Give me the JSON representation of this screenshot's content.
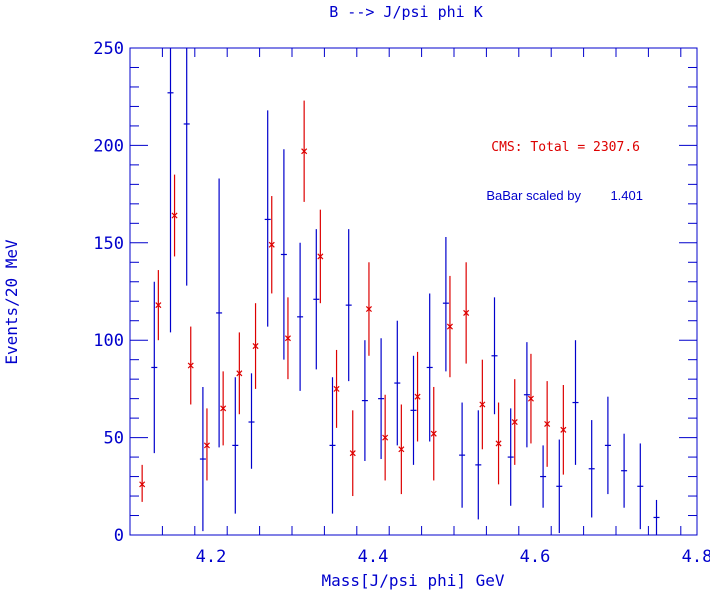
{
  "chart_data": {
    "type": "scatter",
    "title": "B --> J/psi phi K",
    "xlabel": "Mass[J/psi phi] GeV",
    "ylabel": "Events/20 MeV",
    "xlim": [
      4.1,
      4.8
    ],
    "ylim": [
      0,
      250
    ],
    "x_ticks": [
      4.2,
      4.4,
      4.6,
      4.8
    ],
    "x_tick_labels": [
      "4.2",
      "4.4",
      "4.6",
      "4.8"
    ],
    "y_ticks": [
      0,
      50,
      100,
      150,
      200,
      250
    ],
    "y_tick_labels": [
      "0",
      "50",
      "100",
      "150",
      "200",
      "250"
    ],
    "annotations": {
      "cms_label": "CMS:  Total = 2307.6",
      "babar_label": "BaBar scaled by",
      "babar_factor": "1.401"
    },
    "colors": {
      "axis": "#0000cc",
      "cms": "#dd0000",
      "babar": "#0000cc"
    },
    "series": [
      {
        "name": "CMS",
        "marker": "x",
        "points": [
          {
            "x": 4.115,
            "y": 26,
            "lo": 17,
            "hi": 36
          },
          {
            "x": 4.135,
            "y": 118,
            "lo": 100,
            "hi": 136
          },
          {
            "x": 4.155,
            "y": 164,
            "lo": 143,
            "hi": 185
          },
          {
            "x": 4.175,
            "y": 87,
            "lo": 67,
            "hi": 107
          },
          {
            "x": 4.195,
            "y": 46,
            "lo": 28,
            "hi": 65
          },
          {
            "x": 4.215,
            "y": 65,
            "lo": 46,
            "hi": 84
          },
          {
            "x": 4.235,
            "y": 83,
            "lo": 62,
            "hi": 104
          },
          {
            "x": 4.255,
            "y": 97,
            "lo": 75,
            "hi": 119
          },
          {
            "x": 4.275,
            "y": 149,
            "lo": 124,
            "hi": 174
          },
          {
            "x": 4.295,
            "y": 101,
            "lo": 80,
            "hi": 122
          },
          {
            "x": 4.315,
            "y": 197,
            "lo": 171,
            "hi": 223
          },
          {
            "x": 4.335,
            "y": 143,
            "lo": 119,
            "hi": 167
          },
          {
            "x": 4.355,
            "y": 75,
            "lo": 55,
            "hi": 95
          },
          {
            "x": 4.375,
            "y": 42,
            "lo": 20,
            "hi": 64
          },
          {
            "x": 4.395,
            "y": 116,
            "lo": 92,
            "hi": 140
          },
          {
            "x": 4.415,
            "y": 50,
            "lo": 28,
            "hi": 72
          },
          {
            "x": 4.435,
            "y": 44,
            "lo": 21,
            "hi": 67
          },
          {
            "x": 4.455,
            "y": 71,
            "lo": 48,
            "hi": 94
          },
          {
            "x": 4.475,
            "y": 52,
            "lo": 28,
            "hi": 76
          },
          {
            "x": 4.495,
            "y": 107,
            "lo": 81,
            "hi": 133
          },
          {
            "x": 4.515,
            "y": 114,
            "lo": 88,
            "hi": 140
          },
          {
            "x": 4.535,
            "y": 67,
            "lo": 44,
            "hi": 90
          },
          {
            "x": 4.555,
            "y": 47,
            "lo": 26,
            "hi": 68
          },
          {
            "x": 4.575,
            "y": 58,
            "lo": 36,
            "hi": 80
          },
          {
            "x": 4.595,
            "y": 70,
            "lo": 47,
            "hi": 93
          },
          {
            "x": 4.615,
            "y": 57,
            "lo": 35,
            "hi": 79
          },
          {
            "x": 4.635,
            "y": 54,
            "lo": 31,
            "hi": 77
          }
        ]
      },
      {
        "name": "BaBar",
        "marker": "tick",
        "points": [
          {
            "x": 4.13,
            "y": 86,
            "lo": 42,
            "hi": 130
          },
          {
            "x": 4.15,
            "y": 227,
            "lo": 104,
            "hi": 250
          },
          {
            "x": 4.17,
            "y": 211,
            "lo": 128,
            "hi": 250
          },
          {
            "x": 4.19,
            "y": 39,
            "lo": 2,
            "hi": 76
          },
          {
            "x": 4.21,
            "y": 114,
            "lo": 45,
            "hi": 183
          },
          {
            "x": 4.23,
            "y": 46,
            "lo": 11,
            "hi": 81
          },
          {
            "x": 4.25,
            "y": 58,
            "lo": 34,
            "hi": 83
          },
          {
            "x": 4.27,
            "y": 162,
            "lo": 107,
            "hi": 218
          },
          {
            "x": 4.29,
            "y": 144,
            "lo": 90,
            "hi": 198
          },
          {
            "x": 4.31,
            "y": 112,
            "lo": 74,
            "hi": 150
          },
          {
            "x": 4.33,
            "y": 121,
            "lo": 85,
            "hi": 157
          },
          {
            "x": 4.35,
            "y": 46,
            "lo": 11,
            "hi": 81
          },
          {
            "x": 4.37,
            "y": 118,
            "lo": 79,
            "hi": 157
          },
          {
            "x": 4.39,
            "y": 69,
            "lo": 38,
            "hi": 100
          },
          {
            "x": 4.41,
            "y": 70,
            "lo": 39,
            "hi": 101
          },
          {
            "x": 4.43,
            "y": 78,
            "lo": 46,
            "hi": 110
          },
          {
            "x": 4.45,
            "y": 64,
            "lo": 36,
            "hi": 92
          },
          {
            "x": 4.47,
            "y": 86,
            "lo": 48,
            "hi": 124
          },
          {
            "x": 4.49,
            "y": 119,
            "lo": 84,
            "hi": 153
          },
          {
            "x": 4.51,
            "y": 41,
            "lo": 14,
            "hi": 68
          },
          {
            "x": 4.53,
            "y": 36,
            "lo": 8,
            "hi": 64
          },
          {
            "x": 4.55,
            "y": 92,
            "lo": 62,
            "hi": 122
          },
          {
            "x": 4.57,
            "y": 40,
            "lo": 15,
            "hi": 65
          },
          {
            "x": 4.59,
            "y": 72,
            "lo": 45,
            "hi": 99
          },
          {
            "x": 4.61,
            "y": 30,
            "lo": 14,
            "hi": 46
          },
          {
            "x": 4.63,
            "y": 25,
            "lo": 1,
            "hi": 49
          },
          {
            "x": 4.65,
            "y": 68,
            "lo": 36,
            "hi": 100
          },
          {
            "x": 4.67,
            "y": 34,
            "lo": 9,
            "hi": 59
          },
          {
            "x": 4.69,
            "y": 46,
            "lo": 21,
            "hi": 71
          },
          {
            "x": 4.71,
            "y": 33,
            "lo": 14,
            "hi": 52
          },
          {
            "x": 4.73,
            "y": 25,
            "lo": 3,
            "hi": 47
          },
          {
            "x": 4.75,
            "y": 9,
            "lo": 0,
            "hi": 18
          }
        ]
      }
    ]
  }
}
